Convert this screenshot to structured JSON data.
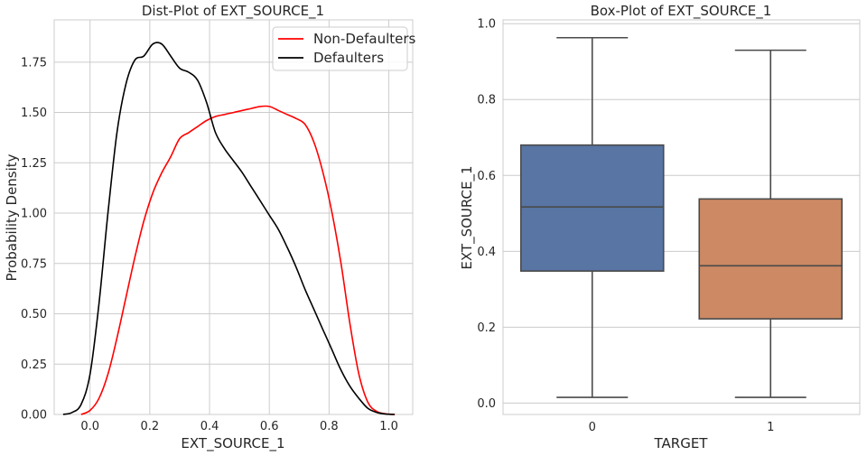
{
  "chart_data": [
    {
      "type": "line",
      "title": "Dist-Plot of EXT_SOURCE_1",
      "xlabel": "EXT_SOURCE_1",
      "ylabel": "Probability Density",
      "xlim": [
        -0.12,
        1.08
      ],
      "ylim": [
        0,
        1.96
      ],
      "xticks": [
        0.0,
        0.2,
        0.4,
        0.6,
        0.8,
        1.0
      ],
      "xtick_labels": [
        "0.0",
        "0.2",
        "0.4",
        "0.6",
        "0.8",
        "1.0"
      ],
      "yticks": [
        0.0,
        0.25,
        0.5,
        0.75,
        1.0,
        1.25,
        1.5,
        1.75
      ],
      "ytick_labels": [
        "0.00",
        "0.25",
        "0.50",
        "0.75",
        "1.00",
        "1.25",
        "1.50",
        "1.75"
      ],
      "grid": true,
      "legend": "top-right",
      "series": [
        {
          "name": "Non-Defaulters",
          "color": "#ff0000",
          "x": [
            -0.03,
            0.0,
            0.03,
            0.06,
            0.09,
            0.12,
            0.15,
            0.18,
            0.21,
            0.24,
            0.27,
            0.3,
            0.33,
            0.36,
            0.39,
            0.42,
            0.45,
            0.48,
            0.51,
            0.54,
            0.57,
            0.6,
            0.63,
            0.66,
            0.69,
            0.72,
            0.75,
            0.78,
            0.81,
            0.84,
            0.87,
            0.9,
            0.93,
            0.96,
            0.99,
            1.02
          ],
          "values": [
            0.0,
            0.02,
            0.08,
            0.2,
            0.38,
            0.58,
            0.78,
            0.96,
            1.1,
            1.2,
            1.28,
            1.37,
            1.4,
            1.43,
            1.46,
            1.48,
            1.49,
            1.5,
            1.51,
            1.52,
            1.53,
            1.53,
            1.51,
            1.49,
            1.47,
            1.44,
            1.35,
            1.2,
            1.0,
            0.75,
            0.45,
            0.2,
            0.06,
            0.015,
            0.003,
            0.0
          ]
        },
        {
          "name": "Defaulters",
          "color": "#000000",
          "x": [
            -0.09,
            -0.06,
            -0.03,
            0.0,
            0.03,
            0.06,
            0.09,
            0.12,
            0.15,
            0.18,
            0.21,
            0.24,
            0.27,
            0.3,
            0.33,
            0.36,
            0.39,
            0.42,
            0.45,
            0.48,
            0.51,
            0.54,
            0.57,
            0.6,
            0.63,
            0.66,
            0.69,
            0.72,
            0.75,
            0.78,
            0.81,
            0.84,
            0.87,
            0.9,
            0.93,
            0.96,
            0.99,
            1.02
          ],
          "values": [
            0.0,
            0.01,
            0.05,
            0.2,
            0.55,
            1.0,
            1.4,
            1.64,
            1.76,
            1.78,
            1.84,
            1.84,
            1.78,
            1.72,
            1.7,
            1.66,
            1.55,
            1.4,
            1.32,
            1.26,
            1.2,
            1.13,
            1.06,
            0.99,
            0.92,
            0.83,
            0.73,
            0.62,
            0.52,
            0.42,
            0.32,
            0.22,
            0.14,
            0.08,
            0.03,
            0.01,
            0.002,
            0.0
          ]
        }
      ]
    },
    {
      "type": "box",
      "title": "Box-Plot of EXT_SOURCE_1",
      "xlabel": "TARGET",
      "ylabel": "EXT_SOURCE_1",
      "ylim": [
        -0.03,
        1.01
      ],
      "yticks": [
        0.0,
        0.2,
        0.4,
        0.6,
        0.8,
        1.0
      ],
      "ytick_labels": [
        "0.0",
        "0.2",
        "0.4",
        "0.6",
        "0.8",
        "1.0"
      ],
      "categories": [
        "0",
        "1"
      ],
      "grid": true,
      "boxes": [
        {
          "category": "0",
          "color": "#5875a4",
          "whislo": 0.015,
          "q1": 0.348,
          "med": 0.517,
          "q3": 0.68,
          "whishi": 0.963
        },
        {
          "category": "1",
          "color": "#cc8963",
          "whislo": 0.015,
          "q1": 0.222,
          "med": 0.362,
          "q3": 0.538,
          "whishi": 0.93
        }
      ]
    }
  ]
}
